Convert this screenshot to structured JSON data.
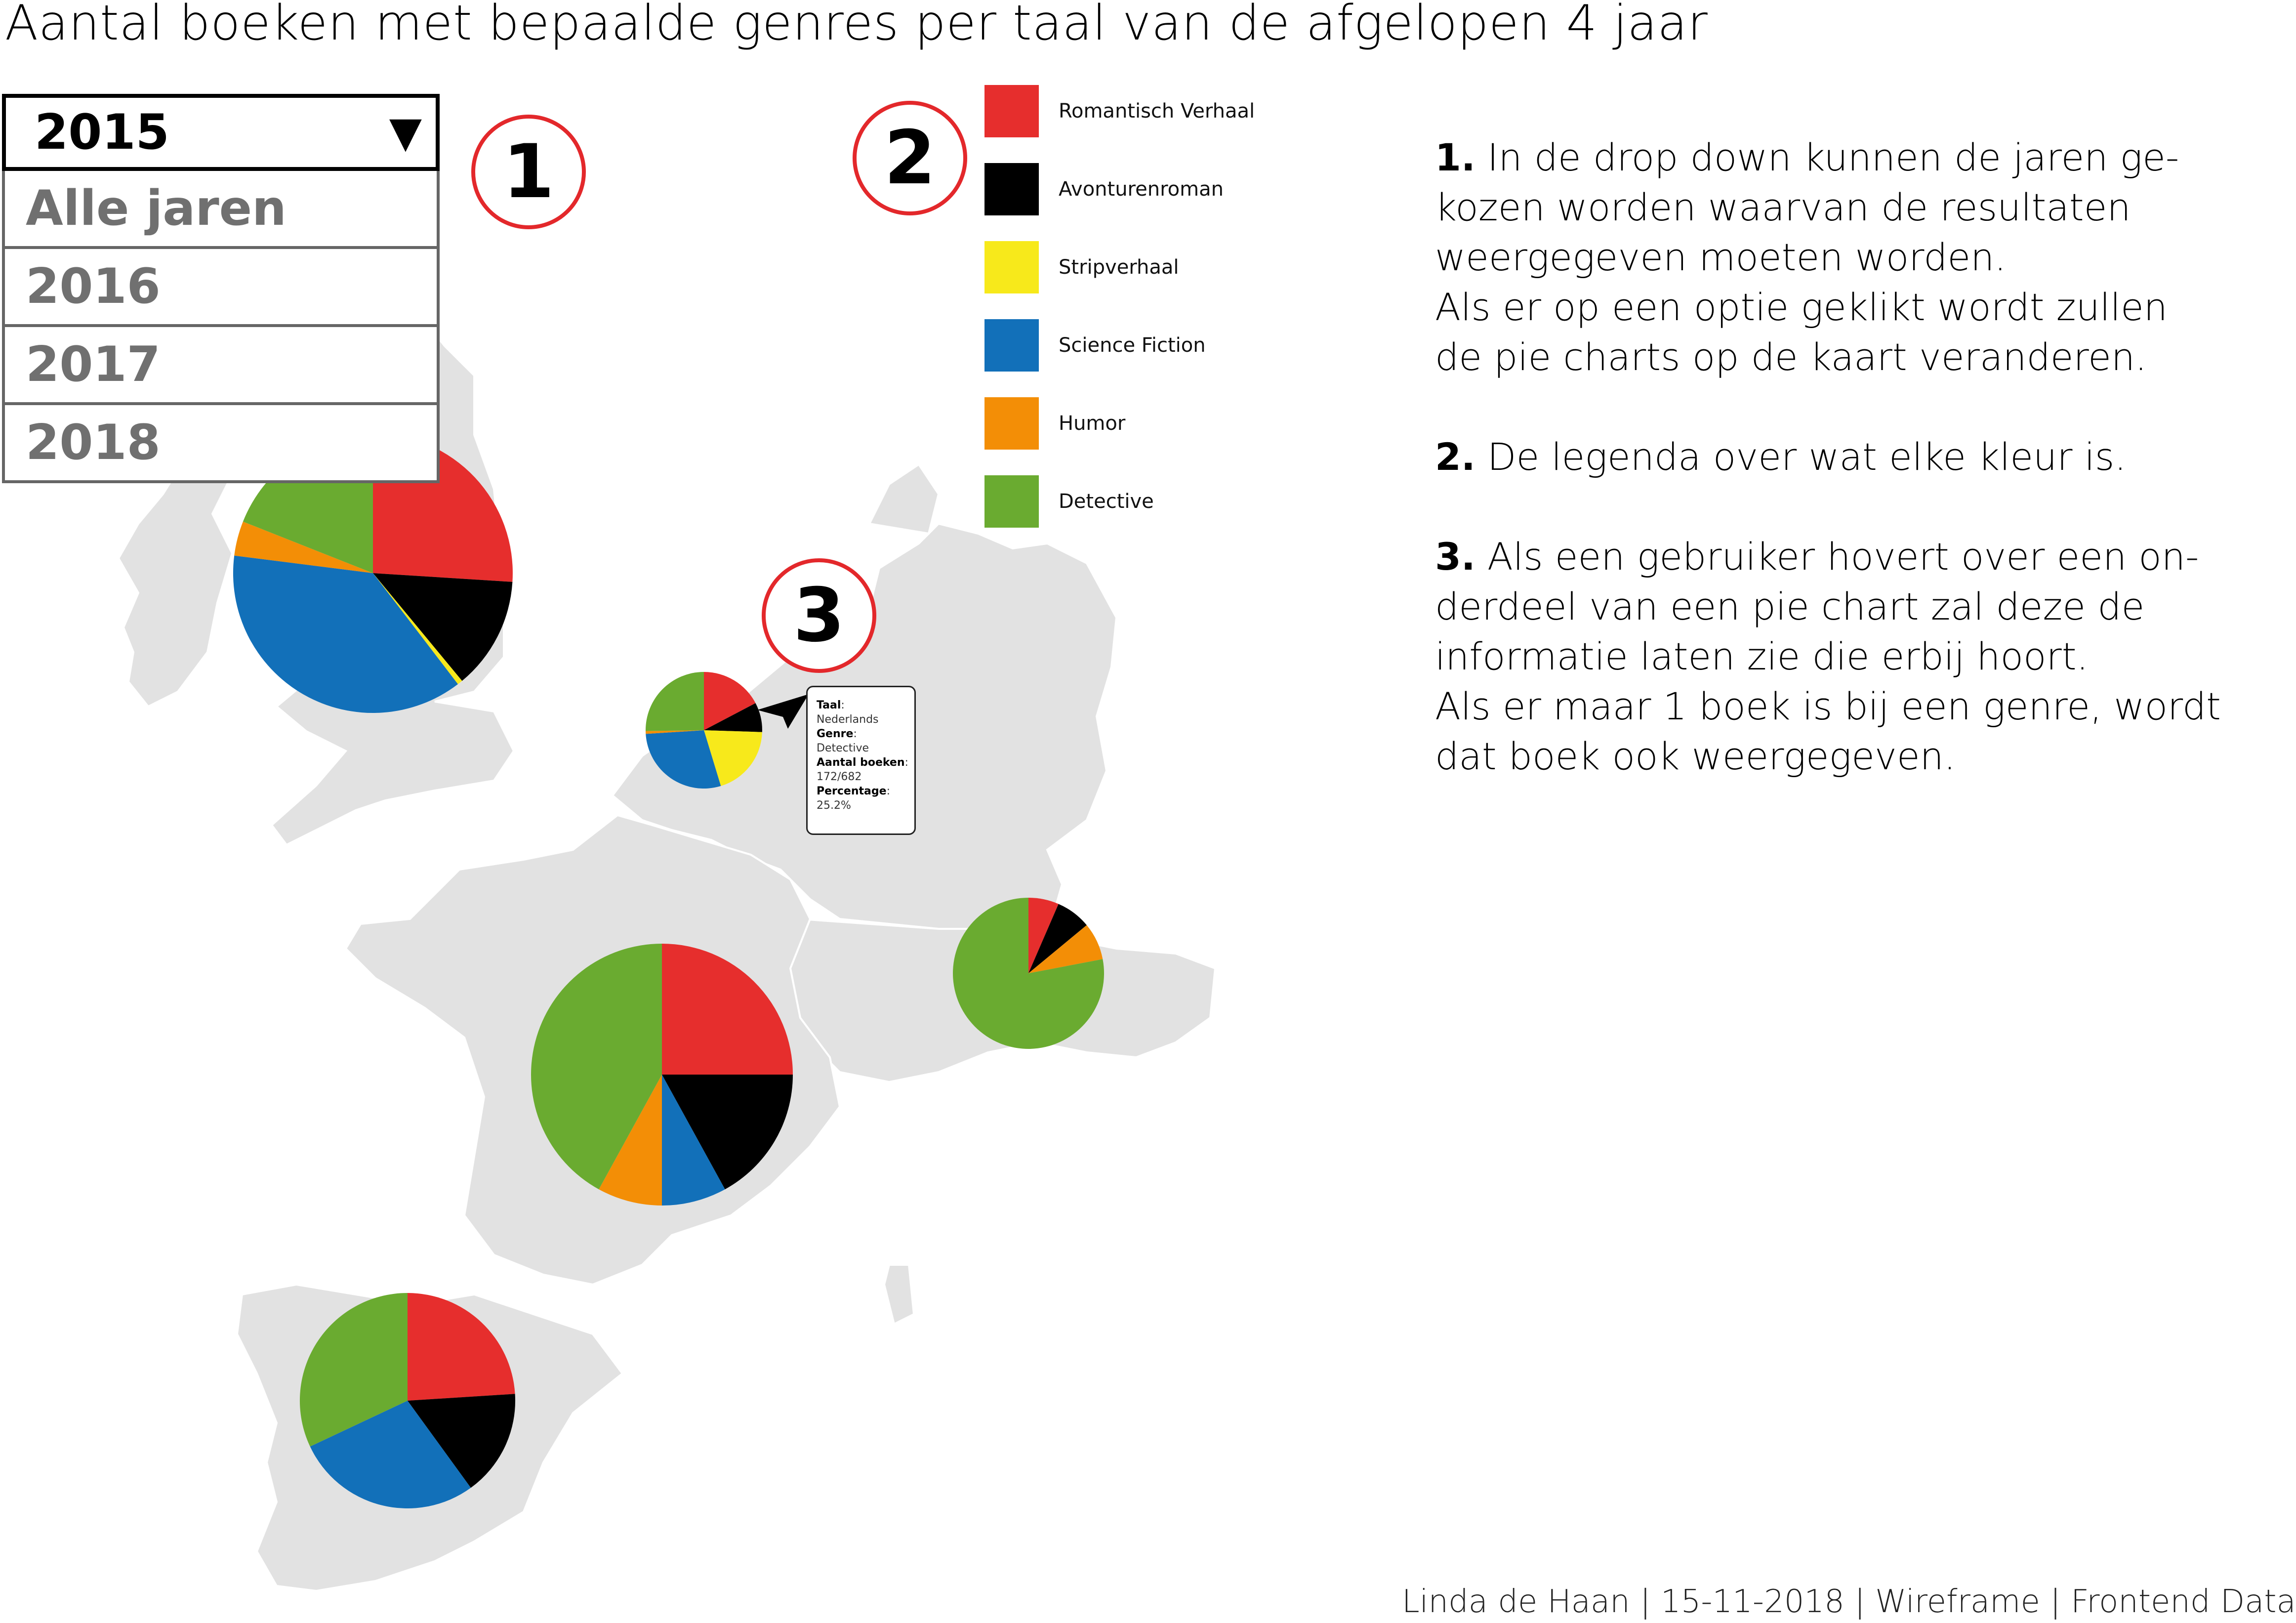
{
  "title": "Aantal boeken met bepaalde genres per taal van de afgelopen 4 jaar",
  "colors": {
    "romantisch": "#e62e2d",
    "avontuur": "#000000",
    "strip": "#f7e91b",
    "scifi": "#1270b9",
    "humor": "#f38e06",
    "detective": "#6aab30",
    "land": "#e2e2e2",
    "marker": "#e3282b"
  },
  "dropdown": {
    "selected": "2015",
    "arrow": "▼",
    "options": [
      "Alle jaren",
      "2016",
      "2017",
      "2018"
    ]
  },
  "markers": {
    "m1": "1",
    "m2": "2",
    "m3": "3"
  },
  "legend": [
    {
      "label": "Romantisch Verhaal",
      "color": "#e62e2d"
    },
    {
      "label": "Avonturenroman",
      "color": "#000000"
    },
    {
      "label": "Stripverhaal",
      "color": "#f7e91b"
    },
    {
      "label": "Science Fiction",
      "color": "#1270b9"
    },
    {
      "label": "Humor",
      "color": "#f38e06"
    },
    {
      "label": "Detective",
      "color": "#6aab30"
    }
  ],
  "chart_data": {
    "type": "pie",
    "series_names": [
      "Romantisch Verhaal",
      "Avonturenroman",
      "Stripverhaal",
      "Science Fiction",
      "Humor",
      "Detective"
    ],
    "pies": [
      {
        "name": "pie-uk",
        "values": [
          26,
          13,
          0.6,
          37.4,
          4,
          19
        ]
      },
      {
        "name": "pie-nl",
        "values": [
          17.3,
          8.2,
          19.8,
          28.7,
          0.8,
          25.2
        ]
      },
      {
        "name": "pie-fr",
        "values": [
          25,
          17,
          0,
          8,
          8,
          42
        ]
      },
      {
        "name": "pie-it",
        "values": [
          6.5,
          7.5,
          0,
          0,
          8,
          78
        ]
      },
      {
        "name": "pie-es",
        "values": [
          24,
          16,
          0,
          28,
          0,
          32
        ]
      }
    ]
  },
  "tooltip": {
    "taal_key": "Taal",
    "taal_val": "Nederlands",
    "genre_key": "Genre",
    "genre_val": "Detective",
    "aantal_key": "Aantal boeken",
    "aantal_val": "172/682",
    "perc_key": "Percentage",
    "perc_val": "25.2%"
  },
  "instructions": {
    "p1_num": "1.",
    "p1_l1": " In de drop down kunnen de jaren ge-",
    "p1_l2": "kozen worden waarvan de resultaten",
    "p1_l3": "weergegeven moeten worden.",
    "p1_l4": "Als er op een optie geklikt wordt zullen",
    "p1_l5": "de pie charts op de kaart veranderen.",
    "p2_num": "2.",
    "p2_l1": " De legenda over wat elke kleur is.",
    "p3_num": "3.",
    "p3_l1": " Als een gebruiker hovert over een on-",
    "p3_l2": "derdeel van een pie chart zal deze de",
    "p3_l3": "informatie laten zie die erbij hoort.",
    "p3_l4": "Als er maar 1 boek is bij een genre, wordt",
    "p3_l5": "dat boek ook weergegeven."
  },
  "footer": "Linda de Haan | 15-11-2018 | Wireframe | Frontend Data"
}
